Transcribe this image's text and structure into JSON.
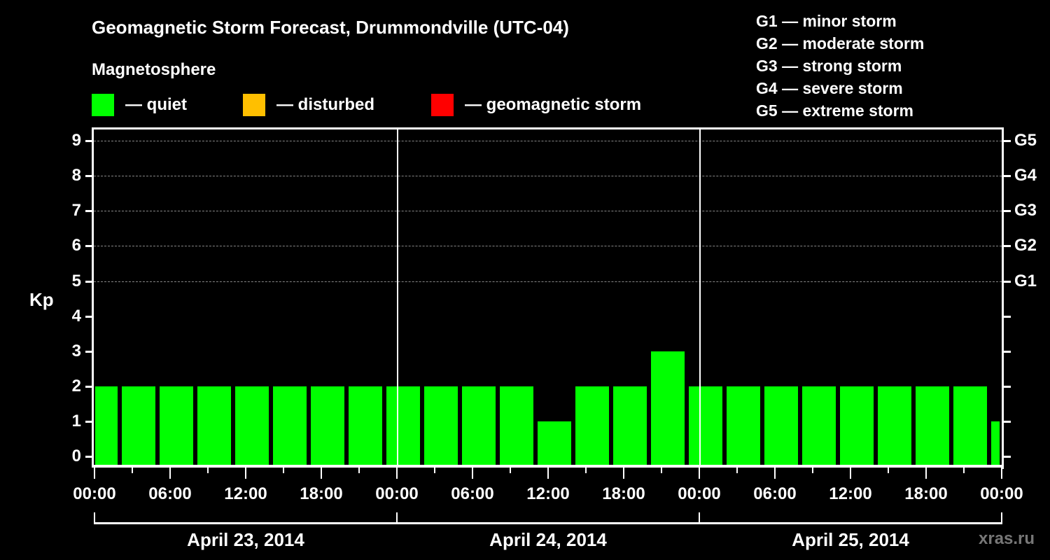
{
  "header": {
    "title": "Geomagnetic Storm Forecast, Drummondville (UTC-04)",
    "subtitle": "Magnetosphere"
  },
  "legend": [
    {
      "label": "— quiet",
      "color": "#00ff00"
    },
    {
      "label": "— disturbed",
      "color": "#ffbf00"
    },
    {
      "label": "— geomagnetic storm",
      "color": "#ff0000"
    }
  ],
  "g_scale_legend": [
    "G1 — minor storm",
    "G2 — moderate storm",
    "G3 — strong storm",
    "G4 — severe storm",
    "G5 — extreme storm"
  ],
  "axes": {
    "ylabel": "Kp",
    "yticks": [
      "0",
      "1",
      "2",
      "3",
      "4",
      "5",
      "6",
      "7",
      "8",
      "9"
    ],
    "right_labels": [
      "G1",
      "G2",
      "G3",
      "G4",
      "G5"
    ],
    "xticks": [
      "00:00",
      "06:00",
      "12:00",
      "18:00",
      "00:00",
      "06:00",
      "12:00",
      "18:00",
      "00:00",
      "06:00",
      "12:00",
      "18:00",
      "00:00"
    ],
    "dates": [
      "April 23, 2014",
      "April 24, 2014",
      "April 25, 2014"
    ]
  },
  "watermark": "xras.ru",
  "chart_data": {
    "type": "bar",
    "title": "Geomagnetic Storm Forecast, Drummondville (UTC-04)",
    "xlabel": "",
    "ylabel": "Kp",
    "ylim": [
      0,
      9
    ],
    "grid": true,
    "legend_position": "top",
    "categories": [
      "Apr 23 00:00",
      "Apr 23 01:30",
      "Apr 23 04:30",
      "Apr 23 07:30",
      "Apr 23 10:30",
      "Apr 23 13:30",
      "Apr 23 16:30",
      "Apr 23 19:30",
      "Apr 23 22:30",
      "Apr 24 01:30",
      "Apr 24 04:30",
      "Apr 24 07:30",
      "Apr 24 10:30",
      "Apr 24 13:30",
      "Apr 24 16:30",
      "Apr 24 19:30",
      "Apr 24 22:30",
      "Apr 25 01:30",
      "Apr 25 04:30",
      "Apr 25 07:30",
      "Apr 25 10:30",
      "Apr 25 13:30",
      "Apr 25 16:30",
      "Apr 25 19:30",
      "Apr 25 22:30"
    ],
    "values": [
      2,
      2,
      2,
      2,
      2,
      2,
      2,
      2,
      2,
      2,
      2,
      2,
      1,
      2,
      2,
      3,
      2,
      2,
      2,
      2,
      2,
      2,
      2,
      2,
      1
    ],
    "status": "all quiet",
    "right_axis": {
      "5": "G1",
      "6": "G2",
      "7": "G3",
      "8": "G4",
      "9": "G5"
    }
  }
}
